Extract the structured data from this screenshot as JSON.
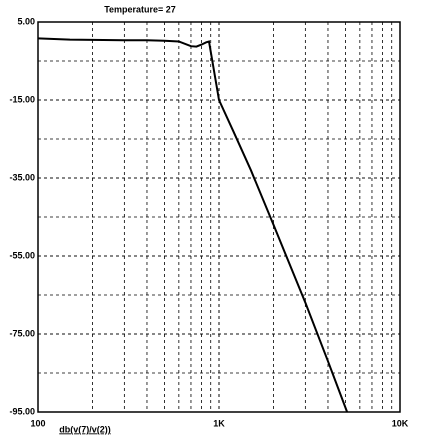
{
  "chart_data": {
    "type": "line",
    "title": "Temperature= 27",
    "xlabel": "db(v(7)/v(2))",
    "xlog": true,
    "xlim": [
      100,
      10000
    ],
    "ylim": [
      -95,
      5
    ],
    "xticks": [
      {
        "value": 100,
        "label": "100"
      },
      {
        "value": 1000,
        "label": "1K"
      },
      {
        "value": 10000,
        "label": "10K"
      }
    ],
    "yticks": [
      {
        "value": 5,
        "label": "5.00"
      },
      {
        "value": -15,
        "label": "-15.00"
      },
      {
        "value": -35,
        "label": "-35.00"
      },
      {
        "value": -55,
        "label": "-55.00"
      },
      {
        "value": -75,
        "label": "-75.00"
      },
      {
        "value": -95,
        "label": "-95.00"
      }
    ],
    "xgrid": [
      200,
      300,
      400,
      500,
      600,
      700,
      800,
      900,
      1000,
      2000,
      3000,
      4000,
      5000,
      6000,
      7000,
      8000,
      9000
    ],
    "ygrid": [
      -5,
      -15,
      -25,
      -35,
      -45,
      -55,
      -65,
      -75,
      -85
    ],
    "grid": true,
    "series": [
      {
        "name": "db(v(7)/v(2))",
        "color": "#000000",
        "x": [
          100,
          150,
          200,
          300,
          400,
          500,
          600,
          700,
          750,
          800,
          850,
          880,
          1000,
          1200,
          1500,
          2000,
          3000,
          4000,
          5100
        ],
        "values": [
          0.8,
          0.5,
          0.4,
          0.3,
          0.3,
          0.2,
          0,
          -1.2,
          -1.3,
          -0.8,
          -0.2,
          0,
          -15,
          -23,
          -33,
          -47,
          -67,
          -82,
          -95
        ]
      }
    ]
  }
}
